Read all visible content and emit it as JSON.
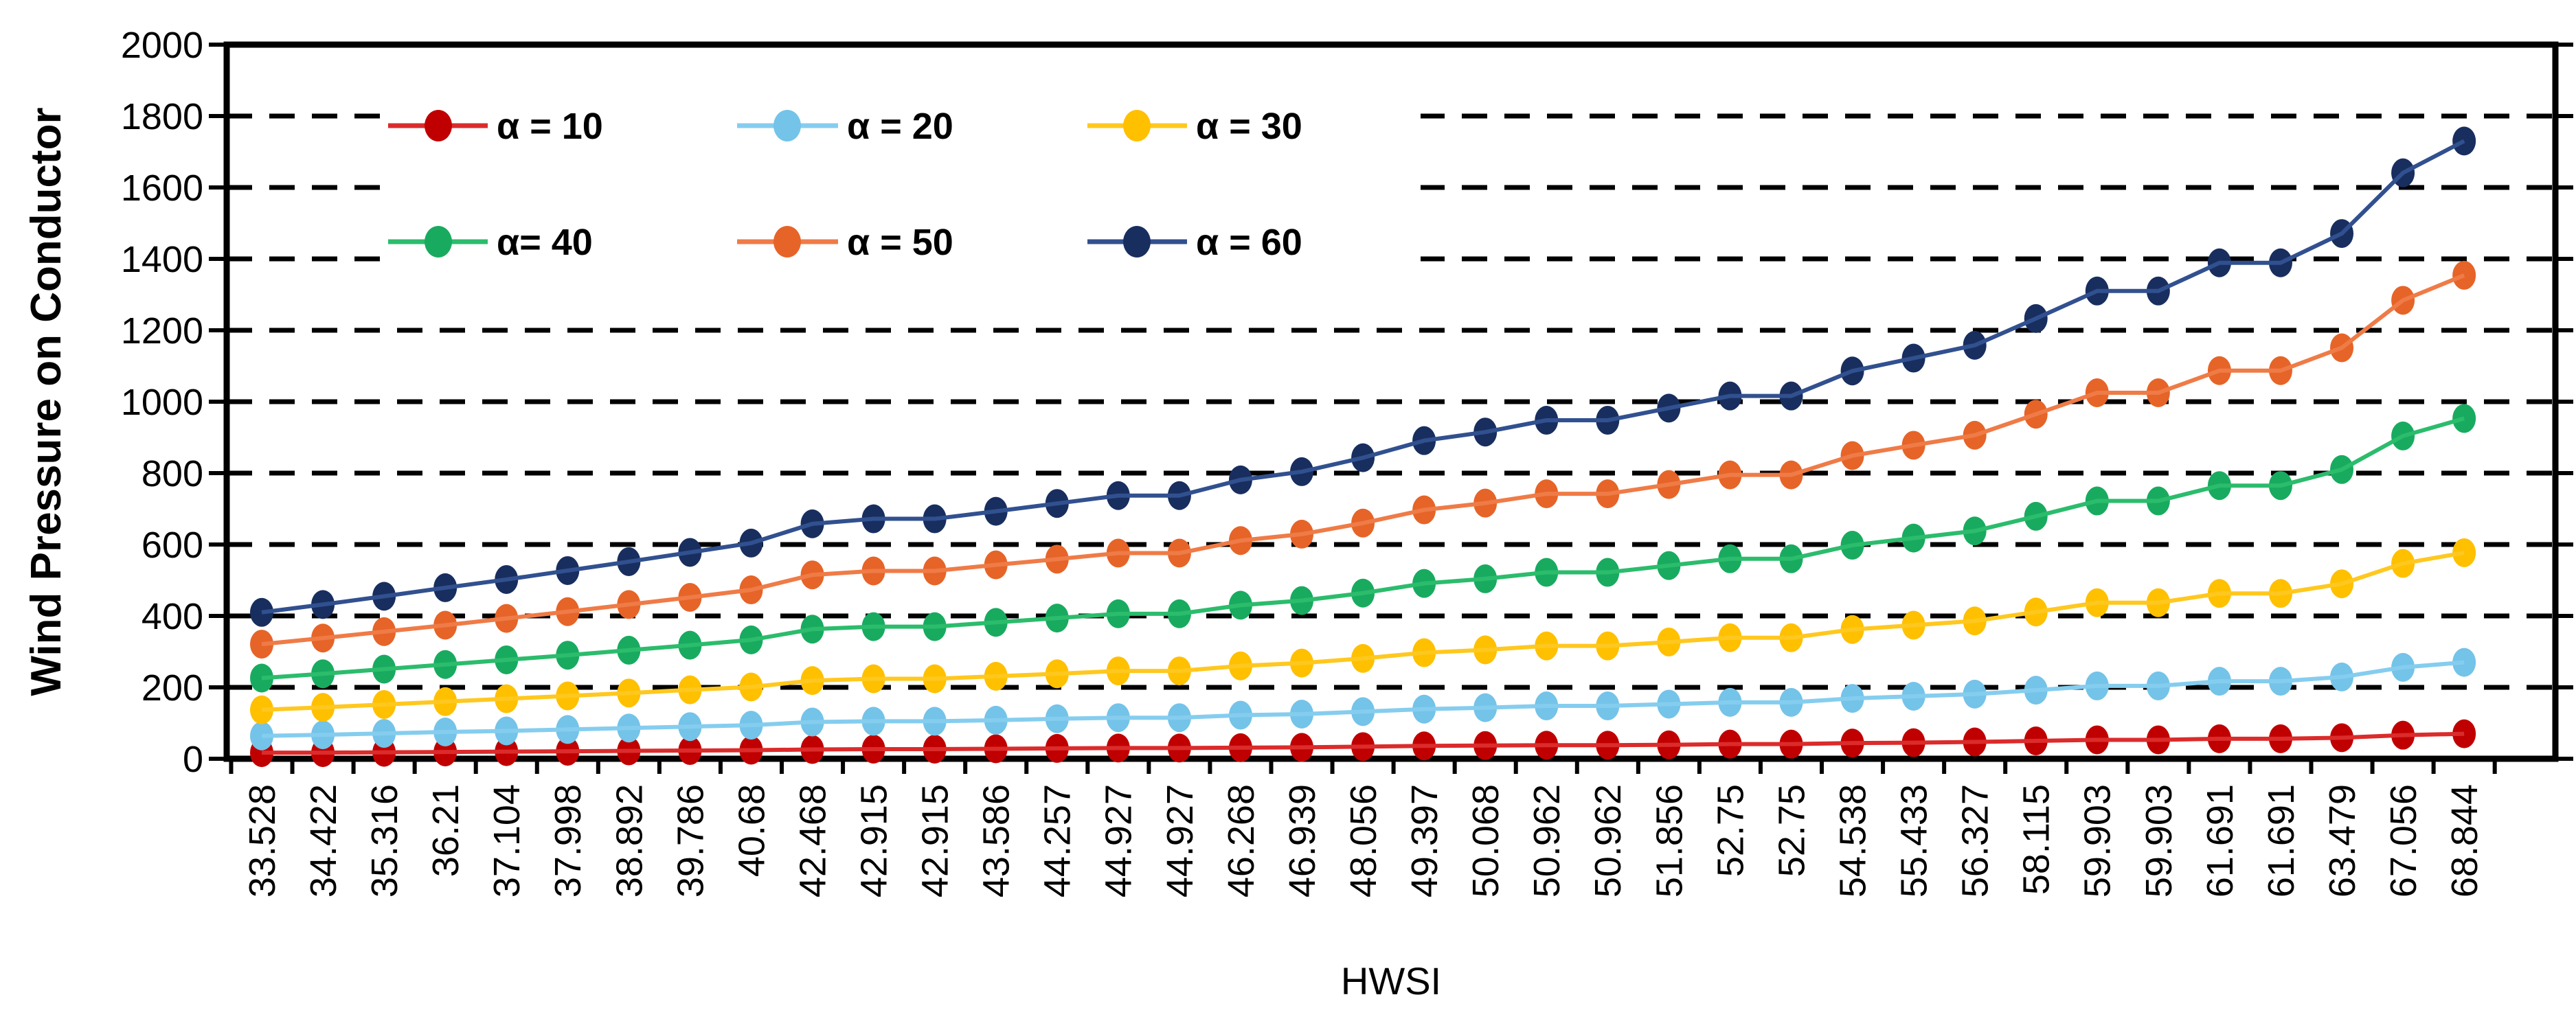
{
  "chart_data": {
    "type": "line",
    "title": "",
    "xlabel": "HWSI",
    "ylabel": "Wind Pressure on Conductor",
    "ylim": [
      0,
      2000
    ],
    "ytick_step": 200,
    "yticks": [
      "0",
      "200",
      "400",
      "600",
      "800",
      "1000",
      "1200",
      "1400",
      "1600",
      "1800",
      "2000"
    ],
    "grid": "horizontal dashed black lines every 200",
    "legend_position": "inside plot, upper-left, 2 rows x 3 columns, white background",
    "axis_color": "#000000",
    "text_color": "#000000",
    "background_color": "#FFFFFF",
    "categories": [
      "33.528",
      "34.422",
      "35.316",
      "36.21",
      "37.104",
      "37.998",
      "38.892",
      "39.786",
      "40.68",
      "42.468",
      "42.915",
      "42.915",
      "43.586",
      "44.257",
      "44.927",
      "44.927",
      "46.268",
      "46.939",
      "48.056",
      "49.397",
      "50.068",
      "50.962",
      "50.962",
      "51.856",
      "52.75",
      "52.75",
      "54.538",
      "55.433",
      "56.327",
      "58.115",
      "59.903",
      "59.903",
      "61.691",
      "61.691",
      "63.479",
      "67.056",
      "68.844"
    ],
    "series": [
      {
        "name": "α = 10",
        "marker_color": "#C00000",
        "line_color": "#DB2B2B",
        "values": [
          17,
          17,
          18,
          19,
          20,
          21,
          22,
          23,
          24,
          26,
          27,
          27,
          28,
          29,
          30,
          30,
          31,
          32,
          34,
          36,
          37,
          38,
          38,
          39,
          41,
          41,
          44,
          45,
          47,
          50,
          53,
          53,
          56,
          56,
          59,
          66,
          70
        ]
      },
      {
        "name": "α = 20",
        "marker_color": "#74C3E9",
        "line_color": "#85CDEF",
        "values": [
          64,
          67,
          71,
          75,
          78,
          82,
          86,
          90,
          94,
          103,
          105,
          105,
          108,
          112,
          115,
          115,
          122,
          125,
          132,
          139,
          143,
          148,
          148,
          153,
          158,
          158,
          169,
          175,
          181,
          192,
          204,
          204,
          217,
          217,
          229,
          256,
          270
        ]
      },
      {
        "name": "α = 30",
        "marker_color": "#FFC000",
        "line_color": "#FFC81F",
        "values": [
          137,
          144,
          152,
          160,
          168,
          176,
          184,
          193,
          201,
          219,
          224,
          224,
          231,
          238,
          246,
          246,
          260,
          268,
          281,
          297,
          305,
          316,
          316,
          327,
          339,
          339,
          362,
          374,
          386,
          411,
          437,
          437,
          463,
          463,
          490,
          547,
          577
        ]
      },
      {
        "name": "α= 40",
        "marker_color": "#18AB5F",
        "line_color": "#2BBC6C",
        "values": [
          226,
          238,
          251,
          264,
          277,
          290,
          304,
          318,
          333,
          363,
          370,
          370,
          382,
          394,
          406,
          406,
          430,
          443,
          464,
          491,
          504,
          522,
          522,
          541,
          560,
          560,
          598,
          618,
          638,
          679,
          722,
          722,
          765,
          765,
          810,
          904,
          953
        ]
      },
      {
        "name": "α = 50",
        "marker_color": "#E66428",
        "line_color": "#EF7B47",
        "values": [
          321,
          338,
          356,
          374,
          393,
          412,
          432,
          452,
          473,
          515,
          526,
          526,
          543,
          559,
          576,
          576,
          611,
          629,
          660,
          697,
          716,
          742,
          742,
          768,
          795,
          795,
          849,
          878,
          906,
          965,
          1025,
          1025,
          1087,
          1087,
          1151,
          1284,
          1354
        ]
      },
      {
        "name": "α = 60",
        "marker_color": "#182E5F",
        "line_color": "#31508F",
        "values": [
          410,
          432,
          455,
          479,
          502,
          527,
          552,
          578,
          604,
          658,
          672,
          672,
          693,
          715,
          737,
          737,
          781,
          804,
          843,
          891,
          915,
          948,
          948,
          982,
          1016,
          1016,
          1086,
          1122,
          1158,
          1233,
          1310,
          1310,
          1389,
          1389,
          1471,
          1641,
          1730
        ]
      }
    ]
  }
}
